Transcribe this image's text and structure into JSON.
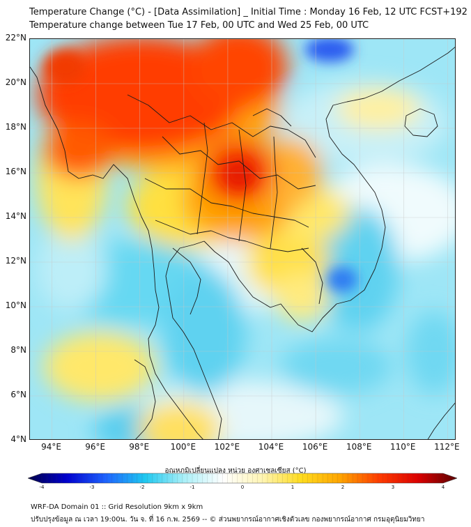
{
  "header": {
    "line1": "Temperature Change (°C) - [Data Assimilation] _ Initial Time : Monday 16 Feb, 12 UTC FCST+192",
    "line2": "Temperature change between Tue 17 Feb, 00 UTC and Wed 25 Feb, 00 UTC"
  },
  "map": {
    "lat_labels": [
      "22°N",
      "20°N",
      "18°N",
      "16°N",
      "14°N",
      "12°N",
      "10°N",
      "8°N",
      "6°N",
      "4°N"
    ],
    "lon_labels": [
      "94°E",
      "96°E",
      "98°E",
      "100°E",
      "102°E",
      "104°E",
      "106°E",
      "108°E",
      "110°E",
      "112°E"
    ],
    "lat_range": [
      4,
      22
    ],
    "lon_range": [
      93,
      112.4
    ],
    "grid": true
  },
  "colorbar": {
    "title": "อุณหภูมิเปลี่ยนแปลง หน่วย องศาเซลเซียส (°C)",
    "ticks": [
      "-4",
      "-3",
      "-2",
      "-1",
      "0",
      "1",
      "2",
      "3",
      "4"
    ],
    "range": [
      -4,
      4
    ],
    "colors": [
      "#00004a",
      "#0000d0",
      "#1e64ff",
      "#1ec8f0",
      "#aaf0f8",
      "#ffffff",
      "#fff5b4",
      "#ffdc1e",
      "#ffa500",
      "#ff3c00",
      "#dc0000",
      "#5a0000"
    ]
  },
  "footer": {
    "line1": "WRF-DA Domain 01 :: Grid Resolution 9km x 9km",
    "line2": "ปรับปรุงข้อมูล ณ เวลา 19:00น. วัน จ. ที่ 16 ก.พ. 2569 -- © ส่วนพยากรณ์อากาศเชิงตัวเลข กองพยากรณ์อากาศ กรมอุตุนิยมวิทยา"
  }
}
